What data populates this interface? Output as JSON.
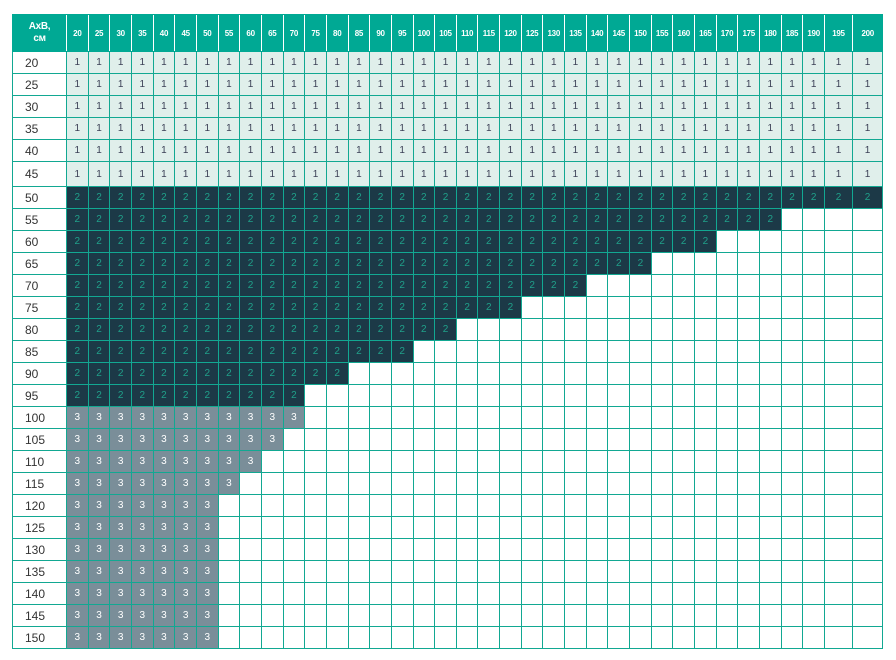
{
  "corner_label": [
    "AxB,",
    "см"
  ],
  "columns": [
    "20",
    "25",
    "30",
    "35",
    "40",
    "45",
    "50",
    "55",
    "60",
    "65",
    "70",
    "75",
    "80",
    "85",
    "90",
    "95",
    "100",
    "105",
    "110",
    "115",
    "120",
    "125",
    "130",
    "135",
    "140",
    "145",
    "150",
    "155",
    "160",
    "165",
    "170",
    "175",
    "180",
    "185",
    "190",
    "195",
    "200"
  ],
  "colors": {
    "header": "#00a994",
    "zone1": "#e0efeb",
    "zone2": "#1c3947",
    "zone3": "#7a8e99",
    "grid": "#12a892"
  },
  "rows": [
    {
      "label": "20",
      "cells": [
        1,
        1,
        1,
        1,
        1,
        1,
        1,
        1,
        1,
        1,
        1,
        1,
        1,
        1,
        1,
        1,
        1,
        1,
        1,
        1,
        1,
        1,
        1,
        1,
        1,
        1,
        1,
        1,
        1,
        1,
        1,
        1,
        1,
        1,
        1,
        1,
        1
      ]
    },
    {
      "label": "25",
      "cells": [
        1,
        1,
        1,
        1,
        1,
        1,
        1,
        1,
        1,
        1,
        1,
        1,
        1,
        1,
        1,
        1,
        1,
        1,
        1,
        1,
        1,
        1,
        1,
        1,
        1,
        1,
        1,
        1,
        1,
        1,
        1,
        1,
        1,
        1,
        1,
        1,
        1
      ]
    },
    {
      "label": "30",
      "cells": [
        1,
        1,
        1,
        1,
        1,
        1,
        1,
        1,
        1,
        1,
        1,
        1,
        1,
        1,
        1,
        1,
        1,
        1,
        1,
        1,
        1,
        1,
        1,
        1,
        1,
        1,
        1,
        1,
        1,
        1,
        1,
        1,
        1,
        1,
        1,
        1,
        1
      ]
    },
    {
      "label": "35",
      "cells": [
        1,
        1,
        1,
        1,
        1,
        1,
        1,
        1,
        1,
        1,
        1,
        1,
        1,
        1,
        1,
        1,
        1,
        1,
        1,
        1,
        1,
        1,
        1,
        1,
        1,
        1,
        1,
        1,
        1,
        1,
        1,
        1,
        1,
        1,
        1,
        1,
        1
      ]
    },
    {
      "label": "40",
      "cells": [
        1,
        1,
        1,
        1,
        1,
        1,
        1,
        1,
        1,
        1,
        1,
        1,
        1,
        1,
        1,
        1,
        1,
        1,
        1,
        1,
        1,
        1,
        1,
        1,
        1,
        1,
        1,
        1,
        1,
        1,
        1,
        1,
        1,
        1,
        1,
        1,
        1
      ]
    },
    {
      "label": "45",
      "cells": [
        1,
        1,
        1,
        1,
        1,
        1,
        1,
        1,
        1,
        1,
        1,
        1,
        1,
        1,
        1,
        1,
        1,
        1,
        1,
        1,
        1,
        1,
        1,
        1,
        1,
        1,
        1,
        1,
        1,
        1,
        1,
        1,
        1,
        1,
        1,
        1,
        1
      ]
    },
    {
      "label": "50",
      "cells": [
        2,
        2,
        2,
        2,
        2,
        2,
        2,
        2,
        2,
        2,
        2,
        2,
        2,
        2,
        2,
        2,
        2,
        2,
        2,
        2,
        2,
        2,
        2,
        2,
        2,
        2,
        2,
        2,
        2,
        2,
        2,
        2,
        2,
        2,
        2,
        2,
        2
      ]
    },
    {
      "label": "55",
      "cells": [
        2,
        2,
        2,
        2,
        2,
        2,
        2,
        2,
        2,
        2,
        2,
        2,
        2,
        2,
        2,
        2,
        2,
        2,
        2,
        2,
        2,
        2,
        2,
        2,
        2,
        2,
        2,
        2,
        2,
        2,
        2,
        2,
        2
      ]
    },
    {
      "label": "60",
      "cells": [
        2,
        2,
        2,
        2,
        2,
        2,
        2,
        2,
        2,
        2,
        2,
        2,
        2,
        2,
        2,
        2,
        2,
        2,
        2,
        2,
        2,
        2,
        2,
        2,
        2,
        2,
        2,
        2,
        2,
        2
      ]
    },
    {
      "label": "65",
      "cells": [
        2,
        2,
        2,
        2,
        2,
        2,
        2,
        2,
        2,
        2,
        2,
        2,
        2,
        2,
        2,
        2,
        2,
        2,
        2,
        2,
        2,
        2,
        2,
        2,
        2,
        2,
        2
      ]
    },
    {
      "label": "70",
      "cells": [
        2,
        2,
        2,
        2,
        2,
        2,
        2,
        2,
        2,
        2,
        2,
        2,
        2,
        2,
        2,
        2,
        2,
        2,
        2,
        2,
        2,
        2,
        2,
        2
      ]
    },
    {
      "label": "75",
      "cells": [
        2,
        2,
        2,
        2,
        2,
        2,
        2,
        2,
        2,
        2,
        2,
        2,
        2,
        2,
        2,
        2,
        2,
        2,
        2,
        2,
        2
      ]
    },
    {
      "label": "80",
      "cells": [
        2,
        2,
        2,
        2,
        2,
        2,
        2,
        2,
        2,
        2,
        2,
        2,
        2,
        2,
        2,
        2,
        2,
        2
      ]
    },
    {
      "label": "85",
      "cells": [
        2,
        2,
        2,
        2,
        2,
        2,
        2,
        2,
        2,
        2,
        2,
        2,
        2,
        2,
        2,
        2
      ]
    },
    {
      "label": "90",
      "cells": [
        2,
        2,
        2,
        2,
        2,
        2,
        2,
        2,
        2,
        2,
        2,
        2,
        2
      ]
    },
    {
      "label": "95",
      "cells": [
        2,
        2,
        2,
        2,
        2,
        2,
        2,
        2,
        2,
        2,
        2
      ]
    },
    {
      "label": "100",
      "cells": [
        3,
        3,
        3,
        3,
        3,
        3,
        3,
        3,
        3,
        3,
        3
      ]
    },
    {
      "label": "105",
      "cells": [
        3,
        3,
        3,
        3,
        3,
        3,
        3,
        3,
        3,
        3
      ]
    },
    {
      "label": "110",
      "cells": [
        3,
        3,
        3,
        3,
        3,
        3,
        3,
        3,
        3
      ]
    },
    {
      "label": "115",
      "cells": [
        3,
        3,
        3,
        3,
        3,
        3,
        3,
        3
      ]
    },
    {
      "label": "120",
      "cells": [
        3,
        3,
        3,
        3,
        3,
        3,
        3
      ]
    },
    {
      "label": "125",
      "cells": [
        3,
        3,
        3,
        3,
        3,
        3,
        3
      ]
    },
    {
      "label": "130",
      "cells": [
        3,
        3,
        3,
        3,
        3,
        3,
        3
      ]
    },
    {
      "label": "135",
      "cells": [
        3,
        3,
        3,
        3,
        3,
        3,
        3
      ]
    },
    {
      "label": "140",
      "cells": [
        3,
        3,
        3,
        3,
        3,
        3,
        3
      ]
    },
    {
      "label": "145",
      "cells": [
        3,
        3,
        3,
        3,
        3,
        3,
        3
      ]
    },
    {
      "label": "150",
      "cells": [
        3,
        3,
        3,
        3,
        3,
        3,
        3
      ]
    }
  ]
}
